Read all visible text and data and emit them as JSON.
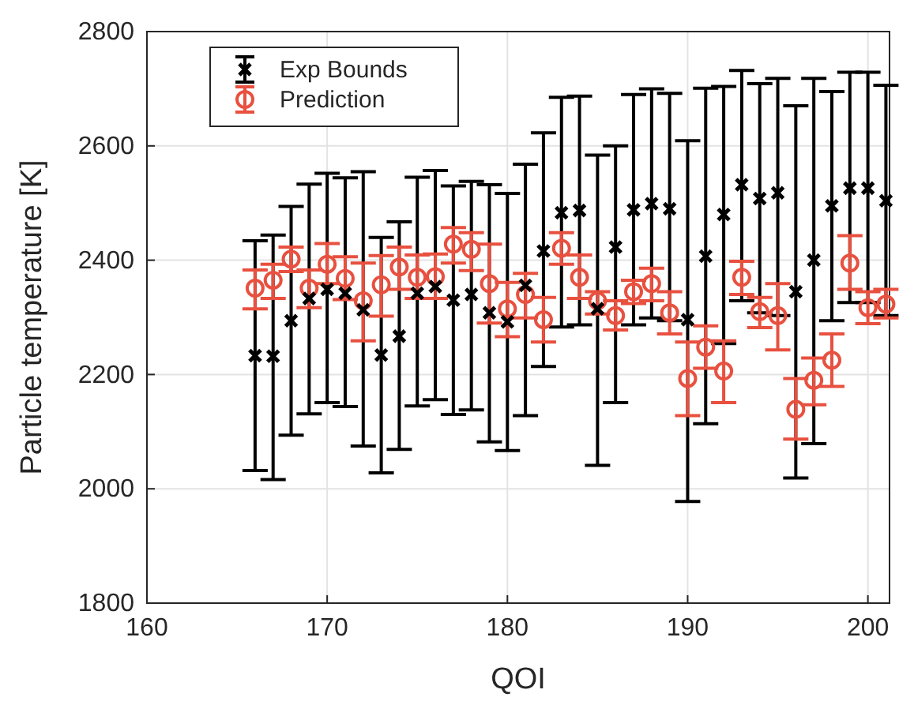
{
  "chart_data": {
    "type": "scatter",
    "xlabel": "QOI",
    "ylabel": "Particle temperature [K]",
    "x": [
      166,
      167,
      168,
      169,
      170,
      171,
      172,
      173,
      174,
      175,
      176,
      177,
      178,
      179,
      180,
      181,
      182,
      183,
      184,
      185,
      186,
      187,
      188,
      189,
      190,
      191,
      192,
      193,
      194,
      195,
      196,
      197,
      198,
      199,
      200,
      201
    ],
    "xlim": [
      160,
      201.2
    ],
    "xticks": [
      160,
      170,
      180,
      190,
      200
    ],
    "ylim": [
      1800,
      2800
    ],
    "yticks": [
      1800,
      2000,
      2200,
      2400,
      2600,
      2800
    ],
    "grid": true,
    "legend": "top left",
    "series": [
      {
        "name": "Exp Bounds",
        "color": "#000000",
        "marker": "cross",
        "values": [
          2233,
          2232,
          2294,
          2333,
          2349,
          2342,
          2313,
          2234,
          2267,
          2342,
          2354,
          2330,
          2340,
          2308,
          2292,
          2356,
          2416,
          2483,
          2487,
          2315,
          2423,
          2488,
          2499,
          2490,
          2296,
          2407,
          2480,
          2532,
          2508,
          2518,
          2345,
          2400,
          2495,
          2526,
          2526,
          2504
        ],
        "errors": [
          [
            2032,
            2434
          ],
          [
            2016,
            2444
          ],
          [
            2094,
            2494
          ],
          [
            2131,
            2533
          ],
          [
            2151,
            2552
          ],
          [
            2144,
            2544
          ],
          [
            2075,
            2555
          ],
          [
            2028,
            2440
          ],
          [
            2069,
            2467
          ],
          [
            2145,
            2545
          ],
          [
            2156,
            2557
          ],
          [
            2130,
            2530
          ],
          [
            2138,
            2538
          ],
          [
            2082,
            2532
          ],
          [
            2067,
            2517
          ],
          [
            2128,
            2568
          ],
          [
            2214,
            2623
          ],
          [
            2283,
            2685
          ],
          [
            2287,
            2687
          ],
          [
            2041,
            2584
          ],
          [
            2151,
            2600
          ],
          [
            2287,
            2690
          ],
          [
            2299,
            2700
          ],
          [
            2294,
            2692
          ],
          [
            1978,
            2609
          ],
          [
            2114,
            2701
          ],
          [
            2254,
            2704
          ],
          [
            2329,
            2732
          ],
          [
            2308,
            2709
          ],
          [
            2303,
            2718
          ],
          [
            2019,
            2670
          ],
          [
            2079,
            2718
          ],
          [
            2294,
            2695
          ],
          [
            2326,
            2729
          ],
          [
            2326,
            2729
          ],
          [
            2303,
            2706
          ]
        ]
      },
      {
        "name": "Prediction",
        "color": "#e8503f",
        "marker": "circle",
        "values": [
          2351,
          2365,
          2402,
          2351,
          2393,
          2368,
          2329,
          2357,
          2388,
          2370,
          2371,
          2428,
          2419,
          2359,
          2315,
          2340,
          2296,
          2421,
          2370,
          2329,
          2303,
          2345,
          2359,
          2308,
          2193,
          2248,
          2206,
          2370,
          2310,
          2303,
          2139,
          2190,
          2225,
          2395,
          2317,
          2323
        ],
        "errors": [
          [
            2315,
            2383
          ],
          [
            2333,
            2393
          ],
          [
            2380,
            2423
          ],
          [
            2317,
            2383
          ],
          [
            2359,
            2429
          ],
          [
            2331,
            2406
          ],
          [
            2259,
            2395
          ],
          [
            2302,
            2408
          ],
          [
            2349,
            2423
          ],
          [
            2333,
            2409
          ],
          [
            2333,
            2411
          ],
          [
            2395,
            2457
          ],
          [
            2382,
            2448
          ],
          [
            2290,
            2428
          ],
          [
            2266,
            2361
          ],
          [
            2299,
            2377
          ],
          [
            2257,
            2335
          ],
          [
            2393,
            2448
          ],
          [
            2333,
            2409
          ],
          [
            2306,
            2345
          ],
          [
            2278,
            2329
          ],
          [
            2324,
            2365
          ],
          [
            2329,
            2386
          ],
          [
            2271,
            2345
          ],
          [
            2128,
            2257
          ],
          [
            2211,
            2285
          ],
          [
            2151,
            2259
          ],
          [
            2340,
            2398
          ],
          [
            2282,
            2335
          ],
          [
            2243,
            2359
          ],
          [
            2087,
            2193
          ],
          [
            2147,
            2229
          ],
          [
            2179,
            2271
          ],
          [
            2349,
            2443
          ],
          [
            2289,
            2345
          ],
          [
            2299,
            2349
          ]
        ]
      }
    ]
  }
}
